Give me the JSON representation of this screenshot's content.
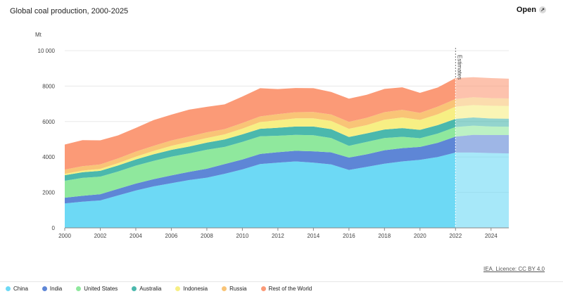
{
  "header": {
    "title": "Global coal production, 2000-2025",
    "open_label": "Open",
    "open_icon": "expand-icon"
  },
  "footer": {
    "credit": "IEA. Licence: CC BY 4.0"
  },
  "chart_data": {
    "type": "area",
    "stacked": true,
    "title": "Global coal production, 2000-2025",
    "ylabel": "Mt",
    "xlabel": "",
    "ylim": [
      0,
      10000
    ],
    "xlim": [
      2000,
      2025
    ],
    "grid": true,
    "legend_position": "bottom",
    "yticks": [
      0,
      2000,
      4000,
      6000,
      8000,
      10000
    ],
    "ytick_labels": [
      "0",
      "2000",
      "4000",
      "6000",
      "8000",
      "10 000"
    ],
    "xticks": [
      2000,
      2002,
      2004,
      2006,
      2008,
      2010,
      2012,
      2014,
      2016,
      2018,
      2020,
      2022,
      2024
    ],
    "annotation": {
      "x": 2022,
      "text": "Estimates"
    },
    "x": [
      2000,
      2001,
      2002,
      2003,
      2004,
      2005,
      2006,
      2007,
      2008,
      2009,
      2010,
      2011,
      2012,
      2013,
      2014,
      2015,
      2016,
      2017,
      2018,
      2019,
      2020,
      2021,
      2022,
      2023,
      2024,
      2025
    ],
    "series": [
      {
        "name": "China",
        "color": "#6dd9f5",
        "values": [
          1380,
          1480,
          1550,
          1830,
          2110,
          2340,
          2520,
          2700,
          2830,
          3050,
          3300,
          3600,
          3680,
          3750,
          3680,
          3580,
          3270,
          3440,
          3620,
          3750,
          3840,
          4000,
          4250,
          4250,
          4220,
          4200
        ]
      },
      {
        "name": "India",
        "color": "#5e86d6",
        "values": [
          320,
          330,
          350,
          370,
          390,
          410,
          440,
          460,
          510,
          550,
          560,
          570,
          590,
          600,
          640,
          680,
          700,
          710,
          760,
          750,
          730,
          800,
          900,
          1000,
          1020,
          1040
        ]
      },
      {
        "name": "United States",
        "color": "#8fe89d",
        "values": [
          960,
          1010,
          990,
          980,
          1010,
          1030,
          1060,
          1040,
          1070,
          970,
          990,
          1000,
          930,
          900,
          910,
          810,
          660,
          700,
          690,
          640,
          490,
          520,
          540,
          520,
          480,
          470
        ]
      },
      {
        "name": "Australia",
        "color": "#4bb8ad",
        "values": [
          310,
          320,
          330,
          340,
          350,
          370,
          380,
          390,
          400,
          420,
          430,
          420,
          450,
          470,
          490,
          500,
          500,
          480,
          480,
          490,
          470,
          480,
          460,
          460,
          450,
          450
        ]
      },
      {
        "name": "Indonesia",
        "color": "#f7ef84",
        "values": [
          80,
          90,
          110,
          130,
          160,
          190,
          230,
          260,
          260,
          290,
          320,
          380,
          420,
          460,
          460,
          460,
          460,
          470,
          550,
          600,
          560,
          610,
          690,
          700,
          720,
          720
        ]
      },
      {
        "name": "Russia",
        "color": "#f9c477",
        "values": [
          240,
          250,
          250,
          270,
          280,
          290,
          300,
          310,
          320,
          290,
          320,
          320,
          350,
          350,
          360,
          370,
          390,
          410,
          430,
          430,
          400,
          430,
          430,
          440,
          430,
          420
        ]
      },
      {
        "name": "Rest of the World",
        "color": "#fb9a77",
        "values": [
          1410,
          1470,
          1360,
          1300,
          1340,
          1450,
          1460,
          1510,
          1440,
          1400,
          1490,
          1590,
          1410,
          1360,
          1340,
          1270,
          1310,
          1300,
          1310,
          1270,
          1130,
          1080,
          1180,
          1130,
          1130,
          1120
        ]
      }
    ]
  }
}
